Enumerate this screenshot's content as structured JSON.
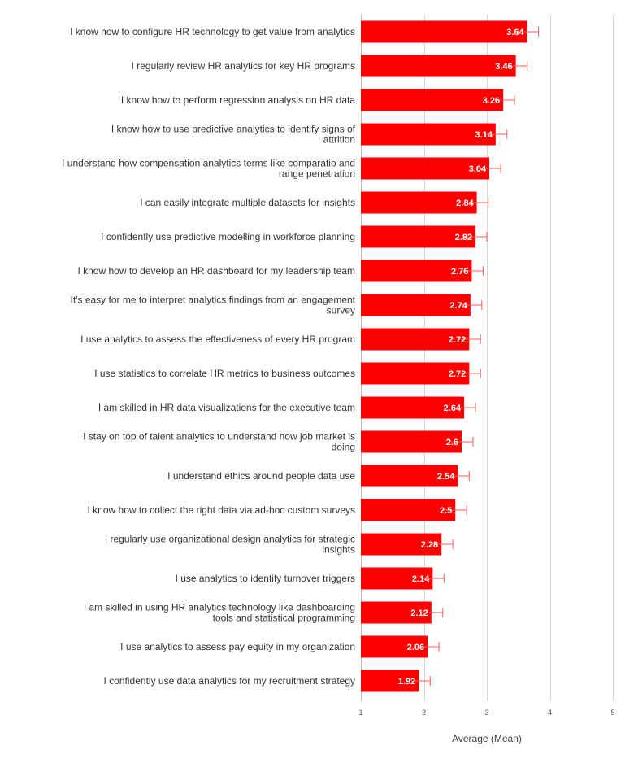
{
  "chart_data": {
    "type": "bar",
    "orientation": "horizontal",
    "categories": [
      "I know how to configure HR technology to get value from analytics",
      "I regularly review HR analytics for key HR programs",
      "I know how to perform regression analysis on HR data",
      "I know how to use predictive analytics to identify signs of attrition",
      "I understand how compensation analytics terms like comparatio and range penetration",
      "I can easily integrate multiple datasets for insights",
      "I confidently use predictive modelling in workforce planning",
      "I know how to develop an HR dashboard for my leadership team",
      "It's easy for me to interpret analytics findings from an engagement survey",
      "I use analytics to assess the effectiveness of every HR program",
      "I use statistics to correlate HR metrics to business outcomes",
      "I am skilled in HR data visualizations for the executive team",
      "I stay on top of talent analytics to understand how job market is doing",
      "I understand ethics around people data use",
      "I know how to collect the right data via ad-hoc custom surveys",
      "I regularly use organizational design analytics for strategic insights",
      "I use analytics to identify turnover triggers",
      "I am skilled in using HR analytics technology like dashboarding tools and statistical programming",
      "I use analytics to assess pay equity in my organization",
      "I confidently use data analytics for my recruitment strategy"
    ],
    "values": [
      3.64,
      3.46,
      3.26,
      3.14,
      3.04,
      2.84,
      2.82,
      2.76,
      2.74,
      2.72,
      2.72,
      2.64,
      2.6,
      2.54,
      2.5,
      2.28,
      2.14,
      2.12,
      2.06,
      1.92
    ],
    "value_labels": [
      "3.64",
      "3.46",
      "3.26",
      "3.14",
      "3.04",
      "2.84",
      "2.82",
      "2.76",
      "2.74",
      "2.72",
      "2.72",
      "2.64",
      "2.6",
      "2.54",
      "2.5",
      "2.28",
      "2.14",
      "2.12",
      "2.06",
      "1.92"
    ],
    "error_margin": 0.18,
    "xlabel": "Average (Mean)",
    "ylabel": "",
    "xlim": [
      1,
      5
    ],
    "xticks": [
      1,
      2,
      3,
      4,
      5
    ],
    "xtick_labels": [
      "1",
      "2",
      "3",
      "4",
      "5"
    ],
    "grid": "vertical",
    "legend": "none",
    "colors": {
      "bar": "#ff0000",
      "error_bar": "#ff5a5a",
      "value_label": "#ffffff",
      "category_label": "#333333",
      "gridline": "#d6d6d6",
      "axis_label": "#444444"
    }
  }
}
